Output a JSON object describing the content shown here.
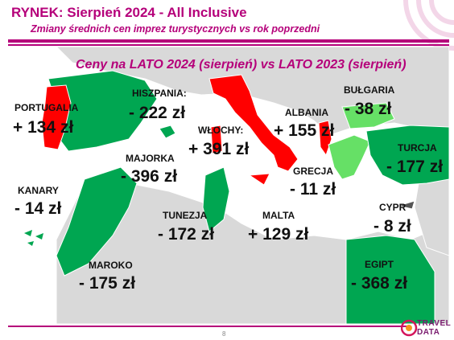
{
  "header": {
    "title": "RYNEK: Sierpień 2024 - All Inclusive",
    "subtitle": "Zmiany średnich cen imprez turystycznych vs rok poprzedni"
  },
  "map": {
    "title": "Ceny na LATO 2024 (sierpień) vs  LATO 2023 (sierpień)",
    "colors": {
      "increase": "#ff0000",
      "decrease": "#00a651",
      "small_decrease": "#66e066",
      "land": "#d9d9d9",
      "sea": "#ffffff"
    },
    "regions": [
      {
        "id": "portugalia",
        "label": "PORTUGALIA",
        "value": "+ 134 zł",
        "trend": "increase"
      },
      {
        "id": "hiszpania",
        "label": "HISZPANIA:",
        "value": "- 222 zł",
        "trend": "decrease"
      },
      {
        "id": "majorka",
        "label": "MAJORKA",
        "value": "- 396 zł",
        "trend": "decrease"
      },
      {
        "id": "wlochy",
        "label": "WŁOCHY:",
        "value": "+ 391 zł",
        "trend": "increase"
      },
      {
        "id": "albania",
        "label": "ALBANIA",
        "value": "+ 155 zł",
        "trend": "increase"
      },
      {
        "id": "bulgaria",
        "label": "BUŁGARIA",
        "value": "- 38 zł",
        "trend": "decrease"
      },
      {
        "id": "turcja",
        "label": "TURCJA",
        "value": "- 177 zł",
        "trend": "decrease"
      },
      {
        "id": "grecja",
        "label": "GRECJA",
        "value": "- 11 zł",
        "trend": "decrease"
      },
      {
        "id": "kanary",
        "label": "KANARY",
        "value": "- 14 zł",
        "trend": "decrease"
      },
      {
        "id": "tunezja",
        "label": "TUNEZJA",
        "value": "- 172 zł",
        "trend": "decrease"
      },
      {
        "id": "malta",
        "label": "MALTA",
        "value": "+ 129 zł",
        "trend": "increase"
      },
      {
        "id": "cypr",
        "label": "CYPR",
        "value": "- 8 zł",
        "trend": "decrease"
      },
      {
        "id": "maroko",
        "label": "MAROKO",
        "value": "- 175 zł",
        "trend": "decrease"
      },
      {
        "id": "egipt",
        "label": "EGIPT",
        "value": "- 368 zł",
        "trend": "decrease"
      }
    ]
  },
  "footer": {
    "page_number": "8",
    "logo_line1": "TRAVEL",
    "logo_line2": "DATA"
  }
}
